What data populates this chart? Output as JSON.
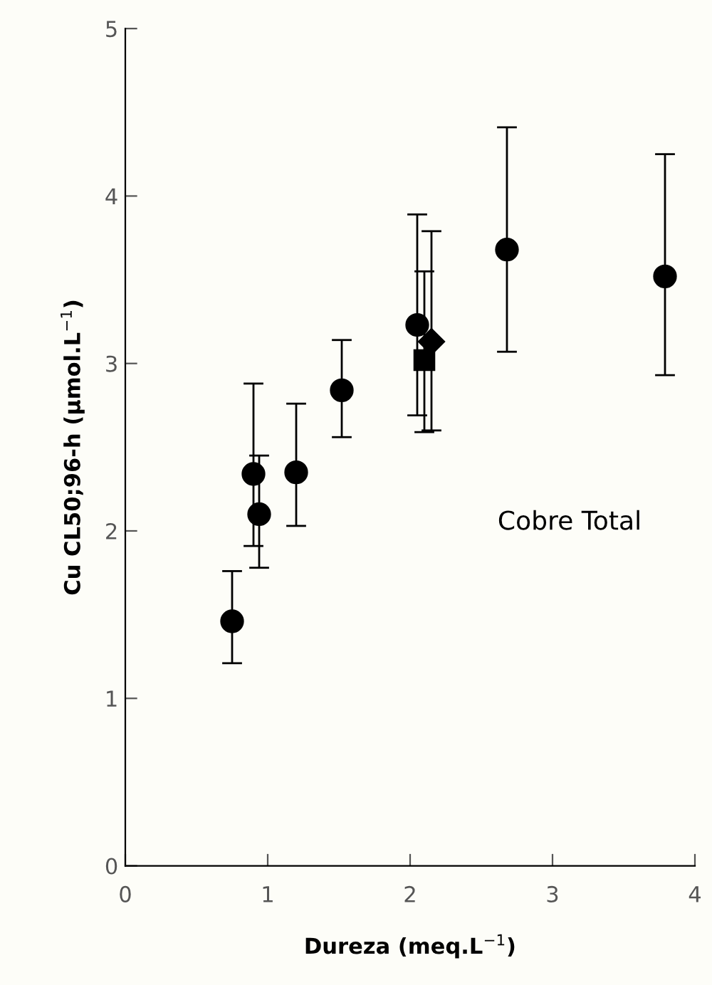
{
  "chart_data": {
    "type": "scatter",
    "xlabel": "Dureza (meq.L$^{−1}$)",
    "ylabel": "Cu CL50;96-h (µmol.L$^{−1}$)",
    "xlim": [
      0,
      4
    ],
    "ylim": [
      0,
      5
    ],
    "xticks": [
      0,
      1,
      2,
      3,
      4
    ],
    "yticks": [
      0,
      1,
      2,
      3,
      4,
      5
    ],
    "grid": false,
    "legend": false,
    "annotations": [
      "Cobre Total"
    ],
    "series": [
      {
        "color": "#000000",
        "marker": "circle",
        "x": [
          0.75,
          0.9,
          0.94,
          1.2,
          1.52,
          2.05,
          2.68,
          3.79
        ],
        "values": [
          1.46,
          2.34,
          2.1,
          2.35,
          2.84,
          3.23,
          3.68,
          3.52
        ],
        "errors": [
          [
            1.21,
            1.76
          ],
          [
            1.91,
            2.88
          ],
          [
            1.78,
            2.45
          ],
          [
            2.03,
            2.76
          ],
          [
            2.56,
            3.14
          ],
          [
            2.69,
            3.89
          ],
          [
            3.07,
            4.41
          ],
          [
            2.93,
            4.25
          ]
        ]
      },
      {
        "color": "#000000",
        "marker": "square",
        "x": [
          2.1
        ],
        "values": [
          3.02
        ],
        "errors": [
          [
            2.59,
            3.55
          ]
        ]
      },
      {
        "color": "#000000",
        "marker": "diamond",
        "x": [
          2.15
        ],
        "values": [
          3.13
        ],
        "errors": [
          [
            2.6,
            3.79
          ]
        ]
      }
    ]
  }
}
